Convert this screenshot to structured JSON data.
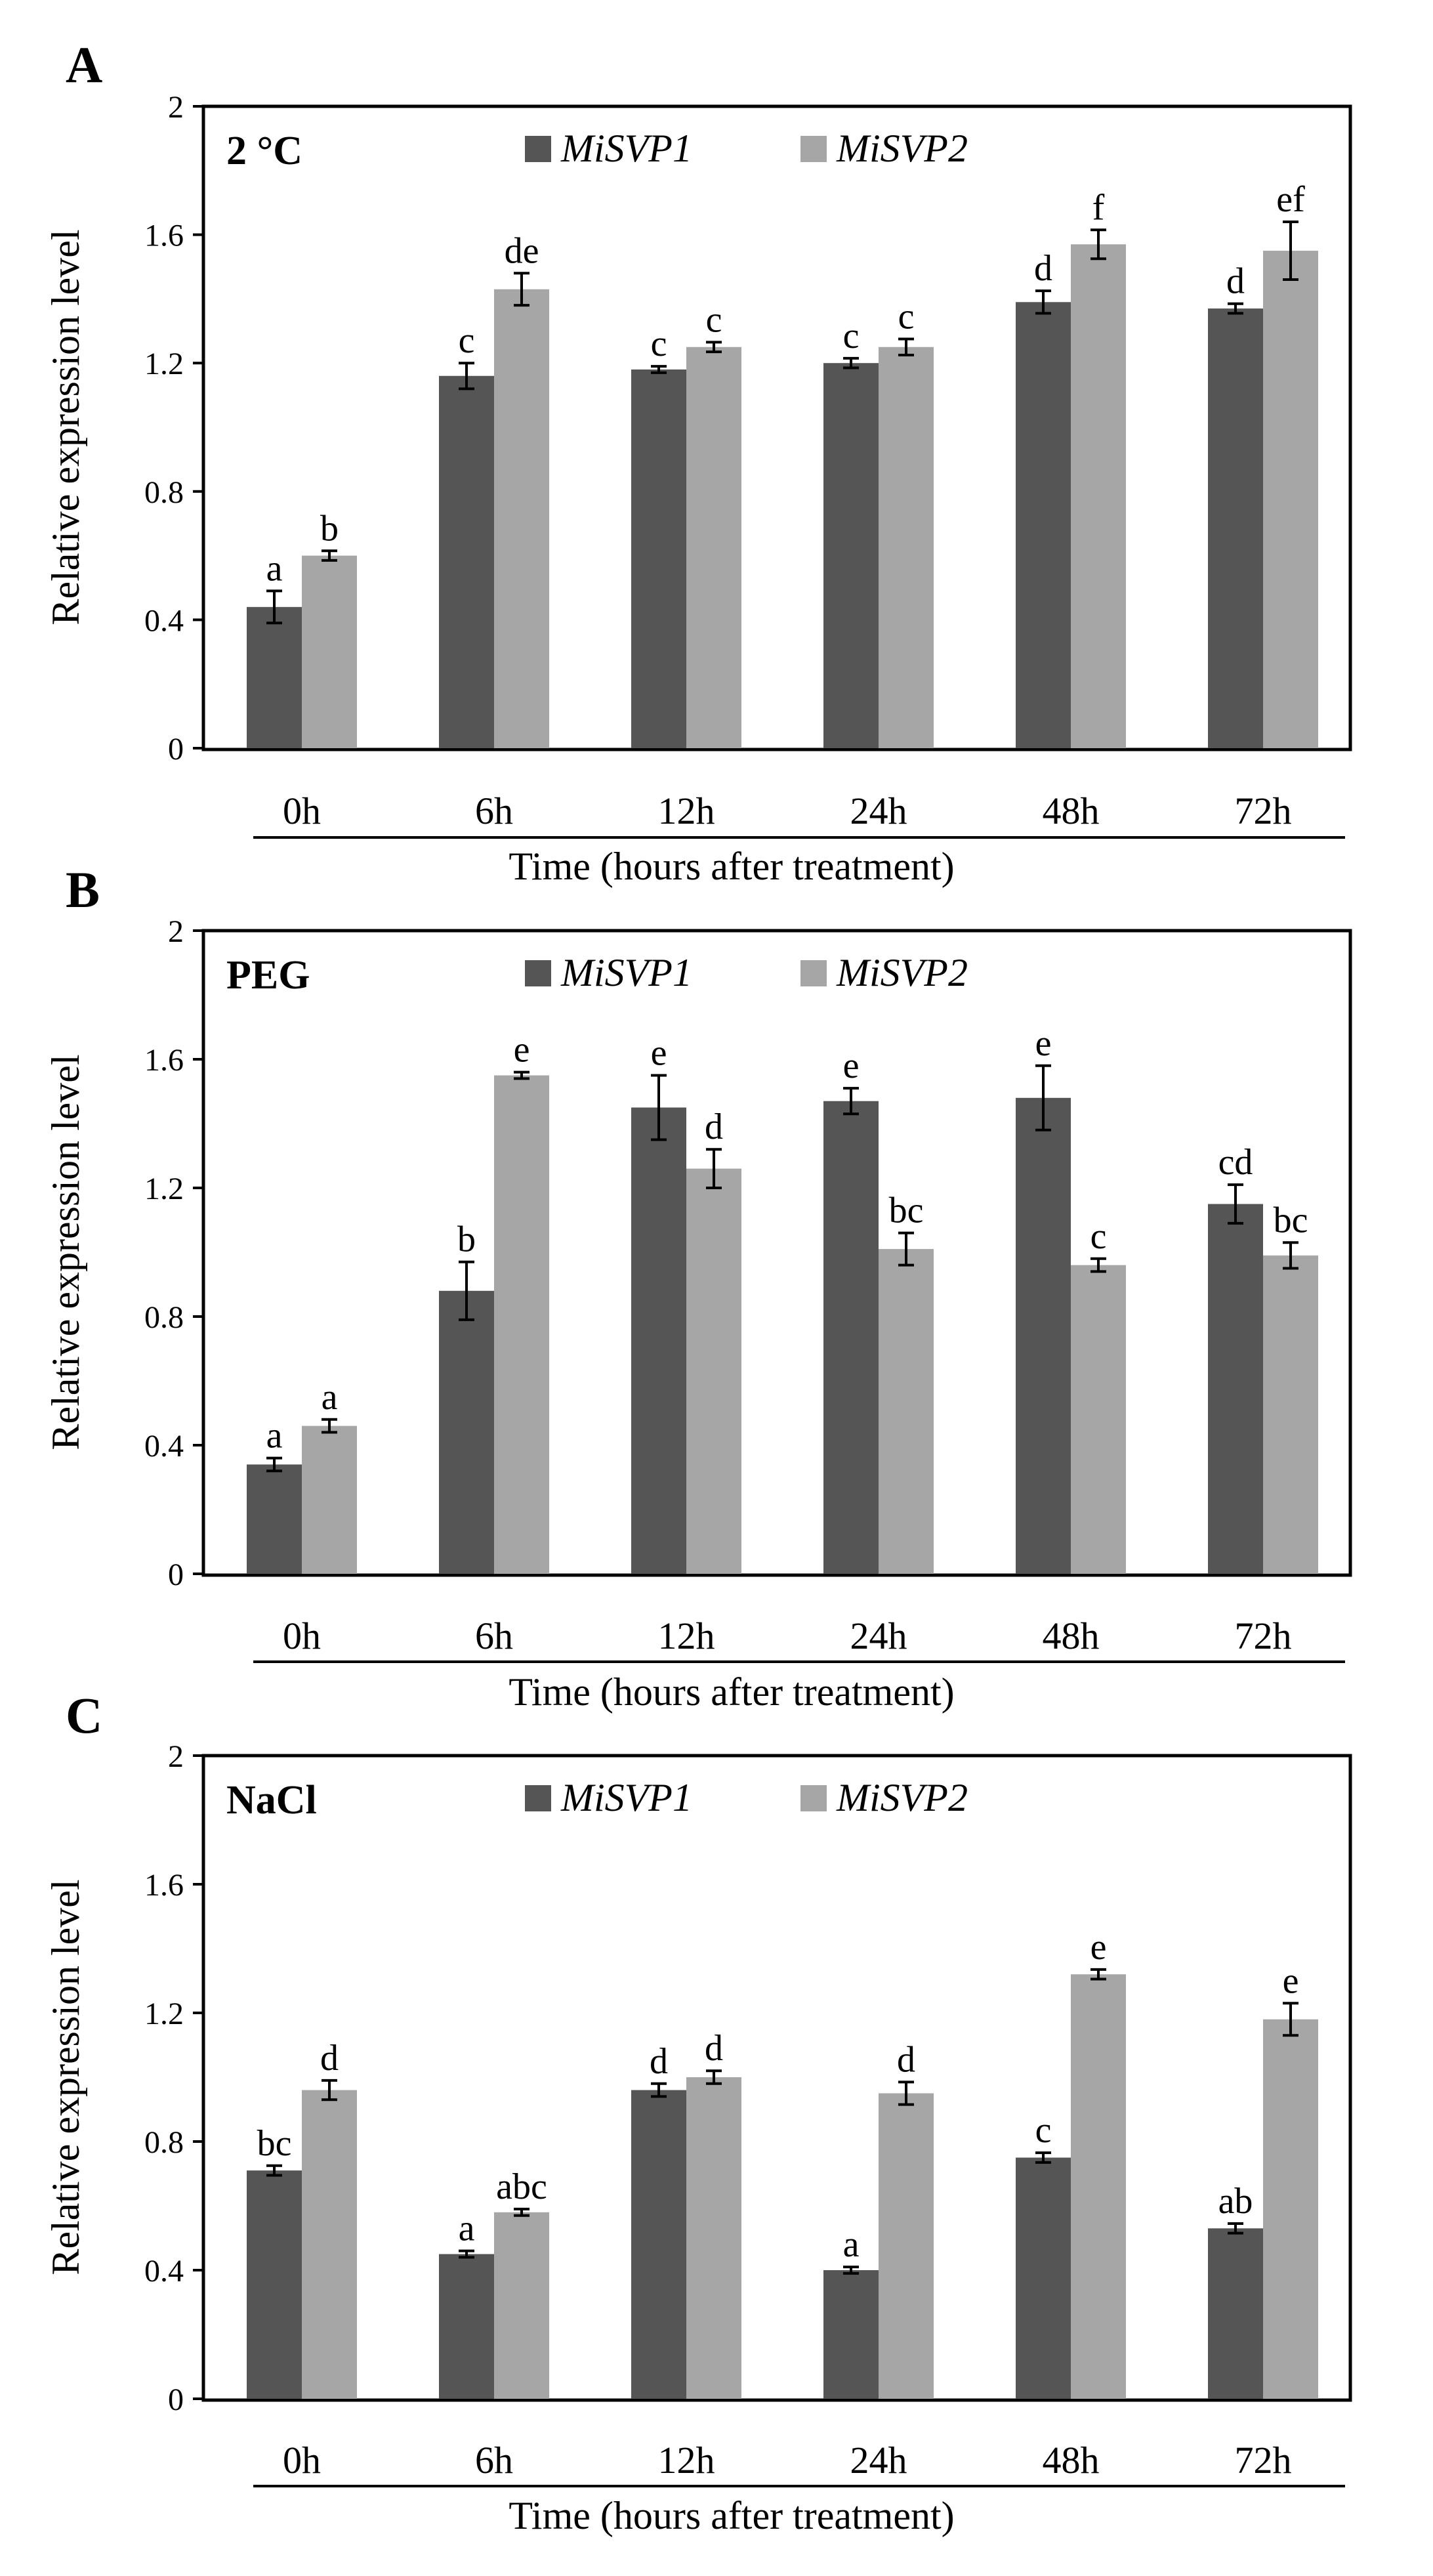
{
  "colors": {
    "series1": "#555555",
    "series2": "#a6a6a6",
    "frame": "#000000",
    "error": "#000000"
  },
  "chart_data": [
    {
      "type": "bar",
      "panel_label": "A",
      "title": "2 °C",
      "xlabel": "Time (hours after treatment)",
      "ylabel": "Relative expression level",
      "ylim": [
        0,
        2
      ],
      "yticks": [
        "0",
        "0.4",
        "0.8",
        "1.2",
        "1.6",
        "2"
      ],
      "categories": [
        "0h",
        "6h",
        "12h",
        "24h",
        "48h",
        "72h"
      ],
      "legend_position": "top-center",
      "series": [
        {
          "name": "MiSVP1",
          "values": [
            0.44,
            1.16,
            1.18,
            1.2,
            1.39,
            1.37
          ],
          "errors": [
            0.05,
            0.04,
            0.01,
            0.015,
            0.035,
            0.015
          ],
          "labels": [
            "a",
            "c",
            "c",
            "c",
            "d",
            "d"
          ]
        },
        {
          "name": "MiSVP2",
          "values": [
            0.6,
            1.43,
            1.25,
            1.25,
            1.57,
            1.55
          ],
          "errors": [
            0.015,
            0.05,
            0.015,
            0.025,
            0.045,
            0.09
          ],
          "labels": [
            "b",
            "de",
            "c",
            "c",
            "f",
            "ef"
          ]
        }
      ]
    },
    {
      "type": "bar",
      "panel_label": "B",
      "title": "PEG",
      "xlabel": "Time (hours after treatment)",
      "ylabel": "Relative expression level",
      "ylim": [
        0,
        2
      ],
      "yticks": [
        "0",
        "0.4",
        "0.8",
        "1.2",
        "1.6",
        "2"
      ],
      "categories": [
        "0h",
        "6h",
        "12h",
        "24h",
        "48h",
        "72h"
      ],
      "legend_position": "top-center",
      "series": [
        {
          "name": "MiSVP1",
          "values": [
            0.34,
            0.88,
            1.45,
            1.47,
            1.48,
            1.15
          ],
          "errors": [
            0.02,
            0.09,
            0.1,
            0.04,
            0.1,
            0.06
          ],
          "labels": [
            "a",
            "b",
            "e",
            "e",
            "e",
            "cd"
          ]
        },
        {
          "name": "MiSVP2",
          "values": [
            0.46,
            1.55,
            1.26,
            1.01,
            0.96,
            0.99
          ],
          "errors": [
            0.02,
            0.01,
            0.06,
            0.05,
            0.02,
            0.04
          ],
          "labels": [
            "a",
            "e",
            "d",
            "bc",
            "c",
            "bc"
          ]
        }
      ]
    },
    {
      "type": "bar",
      "panel_label": "C",
      "title": "NaCl",
      "xlabel": "Time (hours after treatment)",
      "ylabel": "Relative expression level",
      "ylim": [
        0,
        2
      ],
      "yticks": [
        "0",
        "0.4",
        "0.8",
        "1.2",
        "1.6",
        "2"
      ],
      "categories": [
        "0h",
        "6h",
        "12h",
        "24h",
        "48h",
        "72h"
      ],
      "legend_position": "top-center",
      "series": [
        {
          "name": "MiSVP1",
          "values": [
            0.71,
            0.45,
            0.96,
            0.4,
            0.75,
            0.53
          ],
          "errors": [
            0.015,
            0.01,
            0.02,
            0.01,
            0.015,
            0.015
          ],
          "labels": [
            "bc",
            "a",
            "d",
            "a",
            "c",
            "ab"
          ]
        },
        {
          "name": "MiSVP2",
          "values": [
            0.96,
            0.58,
            1.0,
            0.95,
            1.32,
            1.18
          ],
          "errors": [
            0.03,
            0.01,
            0.02,
            0.035,
            0.015,
            0.05
          ],
          "labels": [
            "d",
            "abc",
            "d",
            "d",
            "e",
            "e"
          ]
        }
      ]
    }
  ]
}
